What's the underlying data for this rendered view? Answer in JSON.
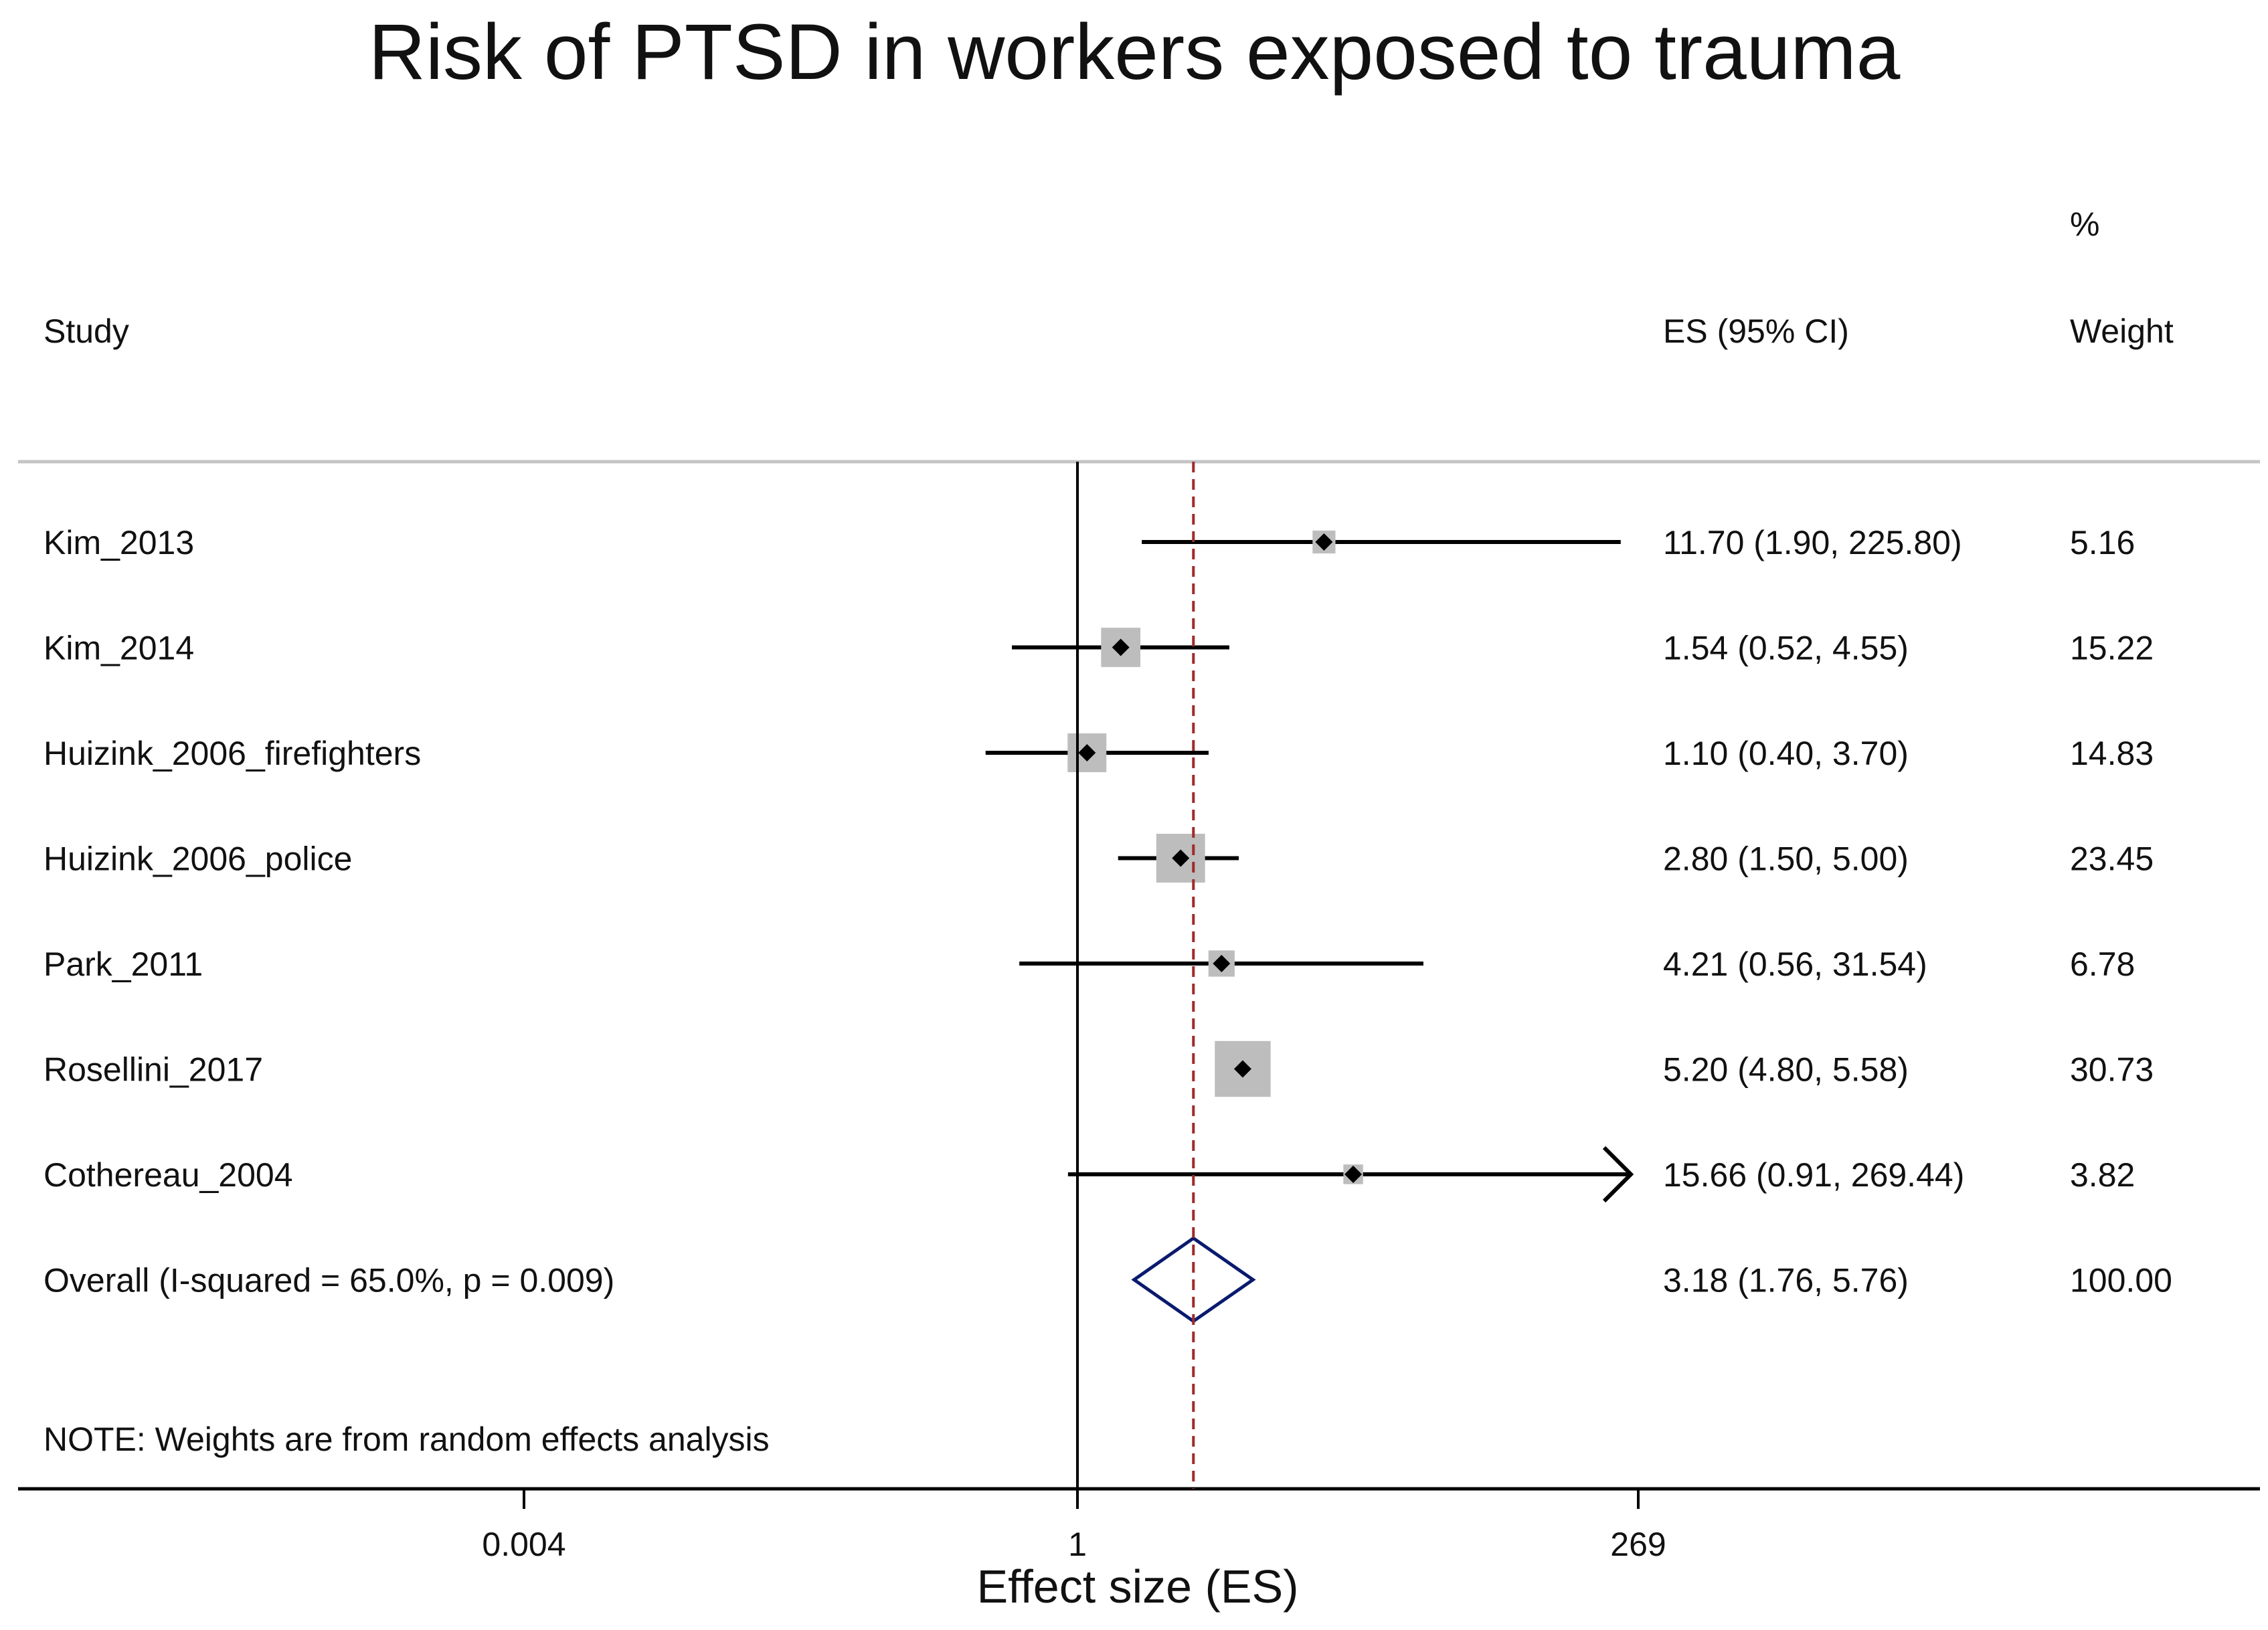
{
  "chart_data": {
    "type": "forest",
    "title": "Risk of PTSD in workers exposed to trauma",
    "xlabel": "Effect size (ES)",
    "x_scale": "log",
    "xlim": [
      0.0037,
      300
    ],
    "xticks": [
      {
        "value": 0.004,
        "label": "0.004"
      },
      {
        "value": 1,
        "label": "1"
      },
      {
        "value": 269,
        "label": "269"
      }
    ],
    "reference_line": 1,
    "overall_line": 3.18,
    "headers": {
      "study": "Study",
      "es": "ES (95% CI)",
      "weight_top": "%",
      "weight": "Weight"
    },
    "studies": [
      {
        "name": "Kim_2013",
        "es": 11.7,
        "lo": 1.9,
        "hi": 225.8,
        "es_label": "11.70 (1.90, 225.80)",
        "weight": 5.16,
        "weight_label": "5.16"
      },
      {
        "name": "Kim_2014",
        "es": 1.54,
        "lo": 0.52,
        "hi": 4.55,
        "es_label": "1.54 (0.52, 4.55)",
        "weight": 15.22,
        "weight_label": "15.22"
      },
      {
        "name": "Huizink_2006_firefighters",
        "es": 1.1,
        "lo": 0.4,
        "hi": 3.7,
        "es_label": "1.10 (0.40, 3.70)",
        "weight": 14.83,
        "weight_label": "14.83"
      },
      {
        "name": "Huizink_2006_police",
        "es": 2.8,
        "lo": 1.5,
        "hi": 5.0,
        "es_label": "2.80 (1.50, 5.00)",
        "weight": 23.45,
        "weight_label": "23.45"
      },
      {
        "name": "Park_2011",
        "es": 4.21,
        "lo": 0.56,
        "hi": 31.54,
        "es_label": "4.21 (0.56, 31.54)",
        "weight": 6.78,
        "weight_label": "6.78"
      },
      {
        "name": "Rosellini_2017",
        "es": 5.2,
        "lo": 4.8,
        "hi": 5.58,
        "es_label": "5.20 (4.80, 5.58)",
        "weight": 30.73,
        "weight_label": "30.73"
      },
      {
        "name": "Cothereau_2004",
        "es": 15.66,
        "lo": 0.91,
        "hi": 269.44,
        "es_label": "15.66 (0.91, 269.44)",
        "weight": 3.82,
        "weight_label": "3.82"
      }
    ],
    "overall": {
      "name": "Overall  (I-squared = 65.0%, p = 0.009)",
      "es": 3.18,
      "lo": 1.76,
      "hi": 5.76,
      "es_label": "3.18 (1.76, 5.76)",
      "weight_label": "100.00"
    },
    "note": "NOTE: Weights are from random effects analysis",
    "colors": {
      "text": "#111111",
      "line": "#000000",
      "box": "#bdbdbd",
      "diamond": "#0a1a6e",
      "ref_dash": "#a02a2a",
      "separator": "#c4c4c4"
    }
  }
}
